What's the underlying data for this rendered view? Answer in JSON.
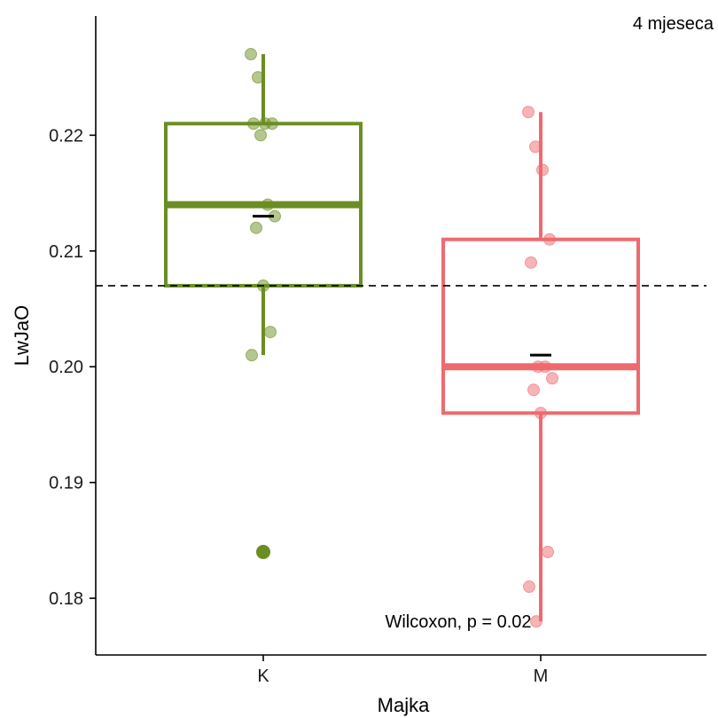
{
  "chart_data": {
    "type": "boxplot",
    "corner_label": "4 mjeseca",
    "xlabel": "Majka",
    "ylabel": "LwJaO",
    "categories": [
      "K",
      "M"
    ],
    "yticks": [
      "0.18",
      "0.19",
      "0.20",
      "0.21",
      "0.22"
    ],
    "ylim": [
      0.1751,
      0.2303
    ],
    "reference_line": 0.207,
    "annotation": "Wilcoxon, p = 0.02",
    "grid": false,
    "legend": "none",
    "series": [
      {
        "category": "K",
        "color": "#6b8e23",
        "q1": 0.207,
        "median": 0.214,
        "q3": 0.221,
        "whisker_low": 0.201,
        "whisker_high": 0.227,
        "mean": 0.213,
        "outliers": [
          0.184
        ],
        "points": [
          0.227,
          0.225,
          0.221,
          0.221,
          0.221,
          0.22,
          0.214,
          0.213,
          0.212,
          0.207,
          0.203,
          0.201
        ]
      },
      {
        "category": "M",
        "color": "#ee6a6e",
        "q1": 0.196,
        "median": 0.2,
        "q3": 0.211,
        "whisker_low": 0.178,
        "whisker_high": 0.222,
        "mean": 0.201,
        "outliers": [],
        "points": [
          0.222,
          0.219,
          0.217,
          0.211,
          0.209,
          0.2,
          0.2,
          0.199,
          0.198,
          0.196,
          0.184,
          0.181,
          0.178
        ]
      }
    ]
  }
}
